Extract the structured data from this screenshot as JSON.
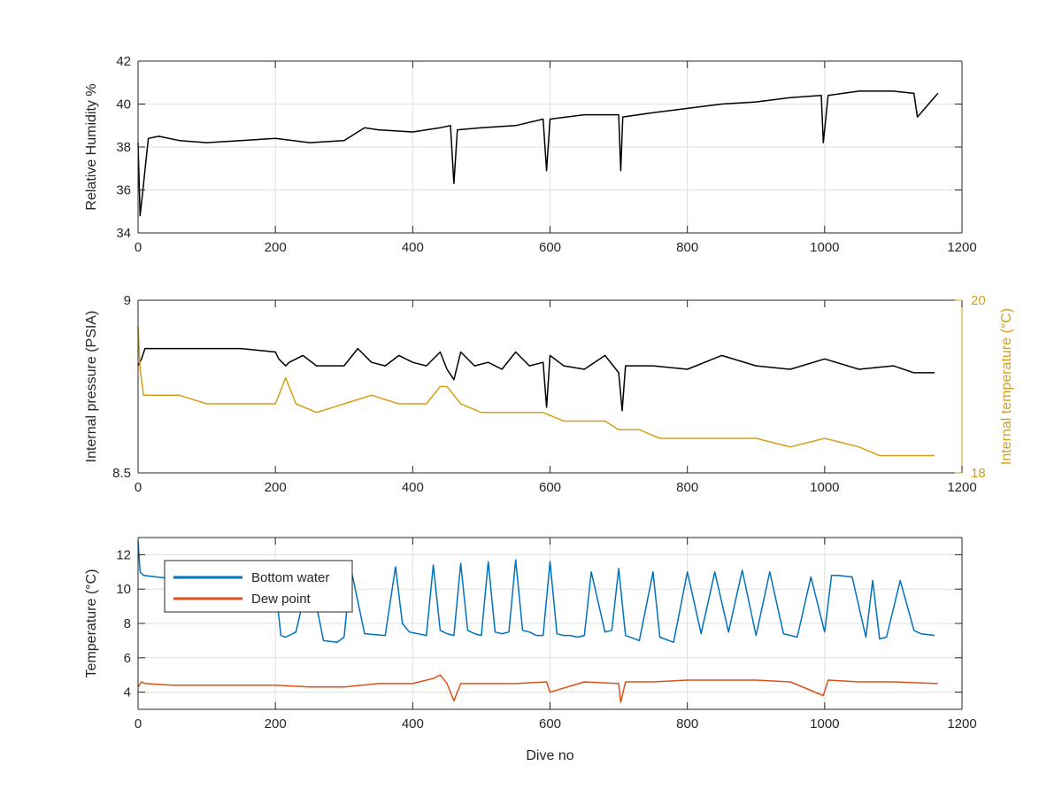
{
  "chart_data": [
    {
      "type": "line",
      "xlabel": "",
      "ylabel": "Relative Humidity %",
      "xlim": [
        0,
        1200
      ],
      "ylim": [
        34,
        42
      ],
      "xticks": [
        0,
        200,
        400,
        600,
        800,
        1000,
        1200
      ],
      "yticks": [
        34,
        36,
        38,
        40,
        42
      ],
      "grid": true,
      "series": [
        {
          "color": "#000000",
          "x": [
            0,
            3,
            6,
            15,
            30,
            60,
            100,
            150,
            200,
            250,
            300,
            330,
            350,
            400,
            440,
            455,
            460,
            465,
            500,
            550,
            590,
            595,
            600,
            650,
            700,
            703,
            706,
            750,
            800,
            850,
            900,
            950,
            995,
            998,
            1005,
            1050,
            1100,
            1130,
            1135,
            1165
          ],
          "y": [
            38.2,
            34.8,
            35.7,
            38.4,
            38.5,
            38.3,
            38.2,
            38.3,
            38.4,
            38.2,
            38.3,
            38.9,
            38.8,
            38.7,
            38.9,
            39.0,
            36.3,
            38.8,
            38.9,
            39.0,
            39.3,
            36.9,
            39.3,
            39.5,
            39.5,
            36.9,
            39.4,
            39.6,
            39.8,
            40.0,
            40.1,
            40.3,
            40.4,
            38.2,
            40.4,
            40.6,
            40.6,
            40.5,
            39.4,
            40.5
          ]
        }
      ]
    },
    {
      "type": "line",
      "xlabel": "",
      "ylabel": "Internal pressure (PSIA)",
      "y2label": "Internal temperature (°C)",
      "xlim": [
        0,
        1200
      ],
      "ylim": [
        8.5,
        9
      ],
      "y2lim": [
        18,
        20
      ],
      "xticks": [
        0,
        200,
        400,
        600,
        800,
        1000,
        1200
      ],
      "yticks": [
        8.5,
        9
      ],
      "y2ticks": [
        18,
        20
      ],
      "grid": false,
      "series": [
        {
          "axis": "left",
          "color": "#000000",
          "x": [
            0,
            5,
            10,
            50,
            100,
            150,
            200,
            205,
            215,
            220,
            240,
            260,
            280,
            300,
            320,
            340,
            360,
            380,
            400,
            420,
            440,
            450,
            460,
            470,
            490,
            510,
            530,
            550,
            570,
            590,
            595,
            600,
            620,
            650,
            680,
            700,
            705,
            710,
            750,
            800,
            850,
            900,
            950,
            1000,
            1050,
            1100,
            1130,
            1160
          ],
          "y": [
            8.81,
            8.83,
            8.86,
            8.86,
            8.86,
            8.86,
            8.85,
            8.83,
            8.81,
            8.82,
            8.84,
            8.81,
            8.81,
            8.81,
            8.86,
            8.82,
            8.81,
            8.84,
            8.82,
            8.81,
            8.85,
            8.8,
            8.77,
            8.85,
            8.81,
            8.82,
            8.8,
            8.85,
            8.81,
            8.82,
            8.69,
            8.84,
            8.81,
            8.8,
            8.84,
            8.79,
            8.68,
            8.81,
            8.81,
            8.8,
            8.84,
            8.81,
            8.8,
            8.83,
            8.8,
            8.81,
            8.79,
            8.79
          ]
        },
        {
          "axis": "right",
          "color": "#d4a017",
          "x": [
            0,
            3,
            8,
            30,
            60,
            100,
            150,
            200,
            215,
            230,
            260,
            300,
            340,
            380,
            420,
            440,
            450,
            470,
            500,
            550,
            590,
            620,
            650,
            680,
            700,
            730,
            760,
            800,
            850,
            900,
            950,
            1000,
            1050,
            1080,
            1110,
            1140,
            1160
          ],
          "y": [
            19.7,
            19.2,
            18.9,
            18.9,
            18.9,
            18.8,
            18.8,
            18.8,
            19.1,
            18.8,
            18.7,
            18.8,
            18.9,
            18.8,
            18.8,
            19.0,
            19.0,
            18.8,
            18.7,
            18.7,
            18.7,
            18.6,
            18.6,
            18.6,
            18.5,
            18.5,
            18.4,
            18.4,
            18.4,
            18.4,
            18.3,
            18.4,
            18.3,
            18.2,
            18.2,
            18.2,
            18.2
          ]
        }
      ]
    },
    {
      "type": "line",
      "xlabel": "Dive no",
      "ylabel": "Temperature (°C)",
      "xlim": [
        0,
        1200
      ],
      "ylim": [
        3,
        13
      ],
      "xticks": [
        0,
        200,
        400,
        600,
        800,
        1000,
        1200
      ],
      "yticks": [
        4,
        6,
        8,
        10,
        12
      ],
      "grid": true,
      "legend": "top-left",
      "series": [
        {
          "name": "Bottom water",
          "color": "#0072bd",
          "x": [
            0,
            3,
            8,
            50,
            100,
            150,
            200,
            208,
            215,
            230,
            250,
            270,
            290,
            300,
            310,
            330,
            360,
            375,
            385,
            395,
            420,
            430,
            440,
            450,
            460,
            470,
            480,
            490,
            500,
            510,
            520,
            530,
            540,
            550,
            560,
            570,
            580,
            590,
            600,
            610,
            620,
            630,
            640,
            650,
            660,
            680,
            690,
            700,
            710,
            730,
            750,
            760,
            780,
            800,
            820,
            840,
            860,
            880,
            900,
            920,
            940,
            960,
            980,
            1000,
            1010,
            1020,
            1040,
            1060,
            1070,
            1080,
            1090,
            1110,
            1130,
            1140,
            1160
          ],
          "y": [
            12.8,
            11.0,
            10.8,
            10.6,
            10.5,
            10.4,
            10.2,
            7.3,
            7.2,
            7.5,
            11.0,
            7.0,
            6.9,
            7.2,
            11.2,
            7.4,
            7.3,
            11.3,
            8.0,
            7.5,
            7.3,
            11.4,
            7.6,
            7.4,
            7.3,
            11.5,
            7.6,
            7.4,
            7.3,
            11.6,
            7.5,
            7.4,
            7.5,
            11.7,
            7.6,
            7.5,
            7.3,
            7.3,
            11.6,
            7.4,
            7.3,
            7.3,
            7.2,
            7.3,
            11.0,
            7.5,
            7.6,
            11.2,
            7.3,
            7.0,
            11.0,
            7.2,
            6.9,
            11.0,
            7.4,
            11.0,
            7.5,
            11.1,
            7.3,
            11.0,
            7.4,
            7.2,
            10.7,
            7.5,
            10.8,
            10.8,
            10.7,
            7.2,
            10.5,
            7.1,
            7.2,
            10.5,
            7.6,
            7.4,
            7.3
          ]
        },
        {
          "name": "Dew point",
          "color": "#d95319",
          "x": [
            0,
            5,
            10,
            50,
            100,
            150,
            200,
            250,
            300,
            350,
            400,
            430,
            440,
            450,
            460,
            470,
            500,
            550,
            595,
            600,
            650,
            700,
            703,
            710,
            750,
            800,
            850,
            900,
            950,
            998,
            1005,
            1050,
            1100,
            1165
          ],
          "y": [
            4.3,
            4.6,
            4.5,
            4.4,
            4.4,
            4.4,
            4.4,
            4.3,
            4.3,
            4.5,
            4.5,
            4.8,
            5.0,
            4.5,
            3.5,
            4.5,
            4.5,
            4.5,
            4.6,
            4.0,
            4.6,
            4.5,
            3.4,
            4.6,
            4.6,
            4.7,
            4.7,
            4.7,
            4.6,
            3.8,
            4.7,
            4.6,
            4.6,
            4.5
          ]
        }
      ]
    }
  ]
}
